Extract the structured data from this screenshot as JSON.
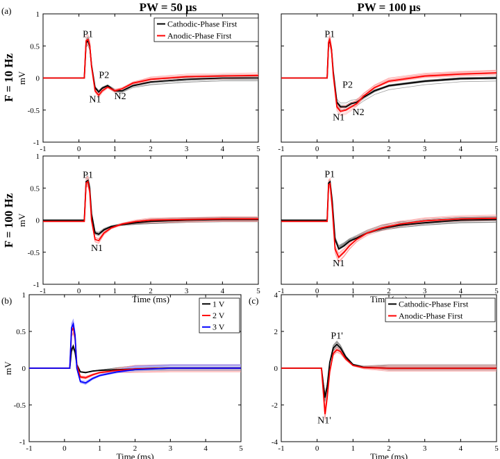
{
  "figure": {
    "col_headers": [
      "PW = 50 μs",
      "PW = 100 μs"
    ],
    "row_headers": [
      "F = 10 Hz",
      "F = 100 Hz"
    ],
    "panel_tags": [
      "(a)",
      "(b)",
      "(c)"
    ]
  },
  "chart_data": [
    {
      "id": "a1",
      "type": "line",
      "xlabel": "",
      "ylabel": "mV",
      "xlim": [
        -1,
        5
      ],
      "ylim": [
        -1,
        1
      ],
      "xticks": [
        "-1",
        "0",
        "1",
        "2",
        "3",
        "4",
        "5"
      ],
      "yticks": [
        "1",
        "0.5",
        "0",
        "-0.5",
        "-1"
      ],
      "legend": [
        {
          "label": "Cathodic-Phase First",
          "color": "#000000"
        },
        {
          "label": "Anodic-Phase First",
          "color": "#ff0000"
        }
      ],
      "annotations": [
        {
          "text": "P1",
          "x": 0.25,
          "y": 0.64
        },
        {
          "text": "P2",
          "x": 0.7,
          "y": 0.0
        },
        {
          "text": "N1",
          "x": 0.45,
          "y": -0.38
        },
        {
          "text": "N2",
          "x": 1.15,
          "y": -0.33
        }
      ],
      "series": [
        {
          "name": "Cathodic-Phase First",
          "color": "#000000",
          "x": [
            -1,
            0.15,
            0.2,
            0.25,
            0.3,
            0.35,
            0.45,
            0.55,
            0.65,
            0.8,
            1.0,
            1.2,
            1.5,
            2,
            3,
            4,
            5
          ],
          "y": [
            0,
            0,
            0.55,
            0.58,
            0.5,
            0.2,
            -0.15,
            -0.22,
            -0.16,
            -0.12,
            -0.2,
            -0.2,
            -0.12,
            -0.06,
            -0.02,
            0,
            0
          ]
        },
        {
          "name": "Anodic-Phase First",
          "color": "#ff0000",
          "x": [
            -1,
            0.15,
            0.2,
            0.25,
            0.3,
            0.35,
            0.45,
            0.55,
            0.65,
            0.8,
            1.0,
            1.2,
            1.5,
            2,
            3,
            4,
            5
          ],
          "y": [
            0,
            0,
            0.58,
            0.6,
            0.52,
            0.18,
            -0.2,
            -0.27,
            -0.2,
            -0.14,
            -0.2,
            -0.17,
            -0.08,
            -0.02,
            0.02,
            0.03,
            0.04
          ]
        }
      ]
    },
    {
      "id": "a2",
      "type": "line",
      "xlabel": "",
      "ylabel": "",
      "xlim": [
        -1,
        5
      ],
      "ylim": [
        -1,
        1
      ],
      "xticks": [
        "-1",
        "0",
        "1",
        "2",
        "3",
        "4",
        "5"
      ],
      "yticks": [],
      "legend": [],
      "annotations": [
        {
          "text": "P1",
          "x": 0.35,
          "y": 0.64
        },
        {
          "text": "P2",
          "x": 0.85,
          "y": -0.15
        },
        {
          "text": "N1",
          "x": 0.6,
          "y": -0.66
        },
        {
          "text": "N2",
          "x": 1.15,
          "y": -0.58
        }
      ],
      "series": [
        {
          "name": "Cathodic-Phase First",
          "color": "#000000",
          "x": [
            -1,
            0.28,
            0.32,
            0.35,
            0.4,
            0.45,
            0.55,
            0.65,
            0.8,
            0.95,
            1.1,
            1.3,
            1.6,
            2,
            3,
            4,
            5
          ],
          "y": [
            0,
            0,
            0.55,
            0.58,
            0.45,
            0.1,
            -0.38,
            -0.45,
            -0.45,
            -0.4,
            -0.38,
            -0.3,
            -0.2,
            -0.12,
            -0.05,
            -0.01,
            0
          ]
        },
        {
          "name": "Anodic-Phase First",
          "color": "#ff0000",
          "x": [
            -1,
            0.28,
            0.32,
            0.35,
            0.4,
            0.45,
            0.55,
            0.65,
            0.8,
            0.95,
            1.1,
            1.3,
            1.6,
            2,
            3,
            4,
            5
          ],
          "y": [
            0,
            0,
            0.56,
            0.6,
            0.45,
            0.05,
            -0.45,
            -0.52,
            -0.5,
            -0.45,
            -0.4,
            -0.28,
            -0.15,
            -0.05,
            0.03,
            0.06,
            0.08
          ]
        }
      ]
    },
    {
      "id": "a3",
      "type": "line",
      "xlabel": "Time (ms)",
      "ylabel": "mV",
      "xlim": [
        -1,
        5
      ],
      "ylim": [
        -1,
        1
      ],
      "xticks": [
        "-1",
        "0",
        "1",
        "2",
        "3",
        "4",
        "5"
      ],
      "yticks": [
        "1",
        "0.5",
        "0",
        "-0.5",
        "-1"
      ],
      "legend": [],
      "annotations": [
        {
          "text": "P1",
          "x": 0.25,
          "y": 0.66
        },
        {
          "text": "N1",
          "x": 0.5,
          "y": -0.48
        }
      ],
      "series": [
        {
          "name": "Cathodic-Phase First",
          "color": "#000000",
          "x": [
            -1,
            0.15,
            0.2,
            0.25,
            0.3,
            0.35,
            0.45,
            0.55,
            0.7,
            0.9,
            1.2,
            1.6,
            2,
            3,
            4,
            5
          ],
          "y": [
            0,
            0,
            0.6,
            0.62,
            0.5,
            0.1,
            -0.2,
            -0.22,
            -0.15,
            -0.1,
            -0.07,
            -0.04,
            -0.02,
            0,
            0.01,
            0.01
          ]
        },
        {
          "name": "Anodic-Phase First",
          "color": "#ff0000",
          "x": [
            -1,
            0.15,
            0.2,
            0.25,
            0.3,
            0.35,
            0.45,
            0.55,
            0.7,
            0.9,
            1.2,
            1.6,
            2,
            3,
            4,
            5
          ],
          "y": [
            -0.02,
            -0.02,
            0.58,
            0.6,
            0.45,
            0.0,
            -0.3,
            -0.32,
            -0.2,
            -0.12,
            -0.06,
            -0.02,
            0,
            0.01,
            0.02,
            0.02
          ]
        }
      ]
    },
    {
      "id": "a4",
      "type": "line",
      "xlabel": "Time (ms)",
      "ylabel": "",
      "xlim": [
        -1,
        5
      ],
      "ylim": [
        -1,
        1
      ],
      "xticks": [
        "-1",
        "0",
        "1",
        "2",
        "3",
        "4",
        "5"
      ],
      "yticks": [],
      "legend": [],
      "annotations": [
        {
          "text": "P1",
          "x": 0.35,
          "y": 0.67
        },
        {
          "text": "N1",
          "x": 0.6,
          "y": -0.72
        }
      ],
      "series": [
        {
          "name": "Cathodic-Phase First",
          "color": "#000000",
          "x": [
            -1,
            0.28,
            0.32,
            0.36,
            0.42,
            0.5,
            0.6,
            0.75,
            0.9,
            1.1,
            1.4,
            1.8,
            2.3,
            3,
            4,
            5
          ],
          "y": [
            0,
            0,
            0.58,
            0.6,
            0.3,
            -0.3,
            -0.45,
            -0.4,
            -0.33,
            -0.28,
            -0.2,
            -0.13,
            -0.08,
            -0.04,
            0,
            0.01
          ]
        },
        {
          "name": "Anodic-Phase First",
          "color": "#ff0000",
          "x": [
            -1,
            0.28,
            0.32,
            0.36,
            0.42,
            0.5,
            0.6,
            0.75,
            0.9,
            1.1,
            1.4,
            1.8,
            2.3,
            3,
            4,
            5
          ],
          "y": [
            -0.02,
            -0.02,
            0.55,
            0.57,
            0.2,
            -0.45,
            -0.58,
            -0.5,
            -0.4,
            -0.3,
            -0.2,
            -0.12,
            -0.06,
            -0.01,
            0.02,
            0.03
          ]
        }
      ]
    },
    {
      "id": "b",
      "type": "line",
      "xlabel": "Time (ms)",
      "ylabel": "mV",
      "xlim": [
        -1,
        5
      ],
      "ylim": [
        -1,
        1
      ],
      "xticks": [
        "-1",
        "0",
        "1",
        "2",
        "3",
        "4",
        "5"
      ],
      "yticks": [
        "1",
        "0.5",
        "0",
        "-0.5",
        "-1"
      ],
      "legend": [
        {
          "label": "1 V",
          "color": "#000000"
        },
        {
          "label": "2 V",
          "color": "#ff0000"
        },
        {
          "label": "3 V",
          "color": "#0000ff"
        }
      ],
      "annotations": [],
      "series": [
        {
          "name": "1 V",
          "color": "#000000",
          "x": [
            -1,
            0.15,
            0.2,
            0.25,
            0.3,
            0.35,
            0.45,
            0.6,
            0.8,
            1,
            1.5,
            2,
            3,
            4,
            5
          ],
          "y": [
            0,
            0,
            0.25,
            0.3,
            0.22,
            0.05,
            -0.05,
            -0.06,
            -0.04,
            -0.03,
            -0.02,
            -0.01,
            0,
            0,
            0
          ]
        },
        {
          "name": "2 V",
          "color": "#ff0000",
          "x": [
            -1,
            0.15,
            0.2,
            0.25,
            0.3,
            0.35,
            0.45,
            0.6,
            0.8,
            1,
            1.5,
            2,
            3,
            4,
            5
          ],
          "y": [
            0,
            0,
            0.5,
            0.55,
            0.42,
            0.05,
            -0.12,
            -0.13,
            -0.09,
            -0.06,
            -0.03,
            -0.01,
            0,
            0,
            0
          ]
        },
        {
          "name": "3 V",
          "color": "#0000ff",
          "x": [
            -1,
            0.15,
            0.2,
            0.25,
            0.3,
            0.35,
            0.45,
            0.6,
            0.8,
            1,
            1.5,
            2,
            3,
            4,
            5
          ],
          "y": [
            0,
            0,
            0.55,
            0.6,
            0.45,
            0.0,
            -0.18,
            -0.2,
            -0.14,
            -0.1,
            -0.05,
            -0.02,
            0,
            0,
            0
          ]
        }
      ]
    },
    {
      "id": "c",
      "type": "line",
      "xlabel": "Time (ms)",
      "ylabel": "",
      "xlim": [
        -1,
        5
      ],
      "ylim": [
        -4,
        4
      ],
      "xticks": [
        "-1",
        "0",
        "1",
        "2",
        "3",
        "4",
        "5"
      ],
      "yticks": [
        "4",
        "2",
        "0",
        "-2",
        "-4"
      ],
      "legend": [
        {
          "label": "Cathodic-Phase First",
          "color": "#000000"
        },
        {
          "label": "Anodic-Phase First",
          "color": "#ff0000"
        }
      ],
      "annotations": [
        {
          "text": "P1'",
          "x": 0.55,
          "y": 1.6
        },
        {
          "text": "N1'",
          "x": 0.2,
          "y": -3.0
        }
      ],
      "series": [
        {
          "name": "Cathodic-Phase First",
          "color": "#000000",
          "x": [
            -1,
            0.12,
            0.18,
            0.22,
            0.28,
            0.35,
            0.45,
            0.55,
            0.65,
            0.8,
            1,
            1.3,
            2,
            3,
            4,
            5
          ],
          "y": [
            0,
            0,
            -1.0,
            -1.6,
            -1.0,
            0.3,
            1.1,
            1.3,
            1.1,
            0.6,
            0.2,
            0.05,
            0,
            0,
            0,
            0
          ]
        },
        {
          "name": "Anodic-Phase First",
          "color": "#ff0000",
          "x": [
            -1,
            0.12,
            0.18,
            0.22,
            0.28,
            0.35,
            0.45,
            0.55,
            0.65,
            0.8,
            1,
            1.3,
            2,
            3,
            4,
            5
          ],
          "y": [
            0,
            0,
            -1.5,
            -2.5,
            -1.6,
            -0.2,
            0.8,
            1.0,
            0.9,
            0.5,
            0.15,
            0.03,
            0,
            0,
            0,
            0
          ]
        }
      ]
    }
  ]
}
